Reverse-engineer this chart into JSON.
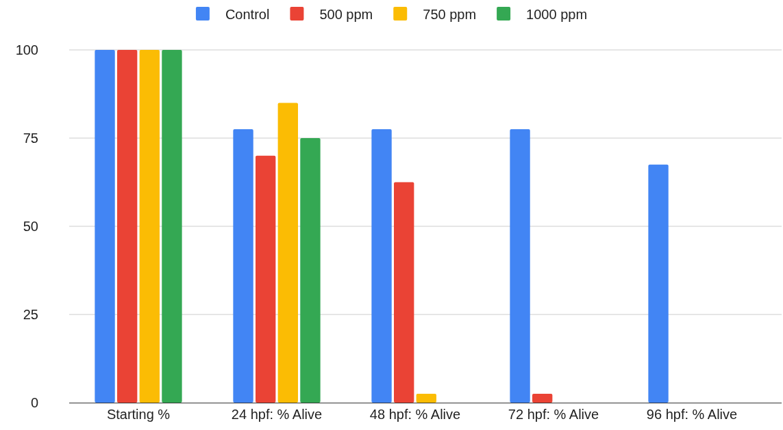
{
  "chart_data": {
    "type": "bar",
    "categories": [
      "Starting %",
      "24 hpf: % Alive",
      "48 hpf: % Alive",
      "72 hpf: % Alive",
      "96 hpf: % Alive"
    ],
    "series": [
      {
        "name": "Control",
        "color": "#4285f4",
        "values": [
          100,
          77.5,
          77.5,
          77.5,
          67.5
        ]
      },
      {
        "name": "500 ppm",
        "color": "#ea4335",
        "values": [
          100,
          70,
          62.5,
          2.5,
          0
        ]
      },
      {
        "name": "750 ppm",
        "color": "#fbbc04",
        "values": [
          100,
          85,
          2.5,
          0,
          0
        ]
      },
      {
        "name": "1000 ppm",
        "color": "#34a853",
        "values": [
          100,
          75,
          0,
          0,
          0
        ]
      }
    ],
    "ylim": [
      0,
      100
    ],
    "yticks": [
      0,
      25,
      50,
      75,
      100
    ],
    "grid": "y",
    "legend": "top"
  }
}
